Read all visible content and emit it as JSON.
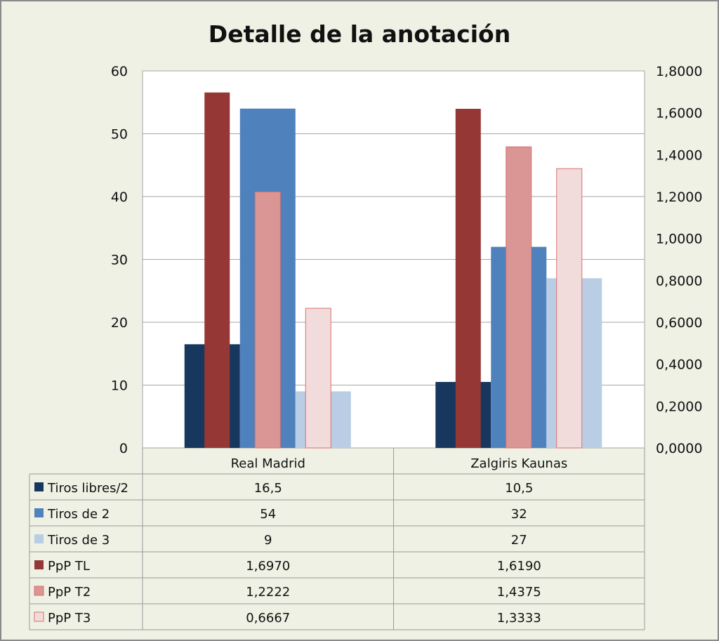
{
  "chart_data": {
    "type": "bar",
    "title": "Detalle de la anotación",
    "categories": [
      "Real Madrid",
      "Zalgiris Kaunas"
    ],
    "y_left": {
      "range": [
        0,
        60
      ],
      "ticks": [
        "0",
        "10",
        "20",
        "30",
        "40",
        "50",
        "60"
      ]
    },
    "y_right": {
      "range": [
        0,
        1.8
      ],
      "ticks": [
        "0,0000",
        "0,2000",
        "0,4000",
        "0,6000",
        "0,8000",
        "1,0000",
        "1,2000",
        "1,4000",
        "1,6000",
        "1,8000"
      ]
    },
    "grid": true,
    "legend": "data-table-below",
    "series": [
      {
        "name": "Tiros libres/2",
        "axis": "left",
        "color": "#17375e",
        "values": [
          16.5,
          10.5
        ],
        "labels": [
          "16,5",
          "10,5"
        ]
      },
      {
        "name": "Tiros de 2",
        "axis": "left",
        "color": "#4f81bd",
        "values": [
          54,
          32
        ],
        "labels": [
          "54",
          "32"
        ]
      },
      {
        "name": "Tiros de 3",
        "axis": "left",
        "color": "#b9cde5",
        "values": [
          9,
          27
        ],
        "labels": [
          "9",
          "27"
        ]
      },
      {
        "name": "PpP TL",
        "axis": "right",
        "color": "#953735",
        "values": [
          1.697,
          1.619
        ],
        "labels": [
          "1,6970",
          "1,6190"
        ]
      },
      {
        "name": "PpP T2",
        "axis": "right",
        "color": "#d99694",
        "values": [
          1.2222,
          1.4375
        ],
        "labels": [
          "1,2222",
          "1,4375"
        ]
      },
      {
        "name": "PpP T3",
        "axis": "right",
        "color": "#f2dcdb",
        "values": [
          0.6667,
          1.3333
        ],
        "labels": [
          "0,6667",
          "1,3333"
        ]
      }
    ]
  }
}
